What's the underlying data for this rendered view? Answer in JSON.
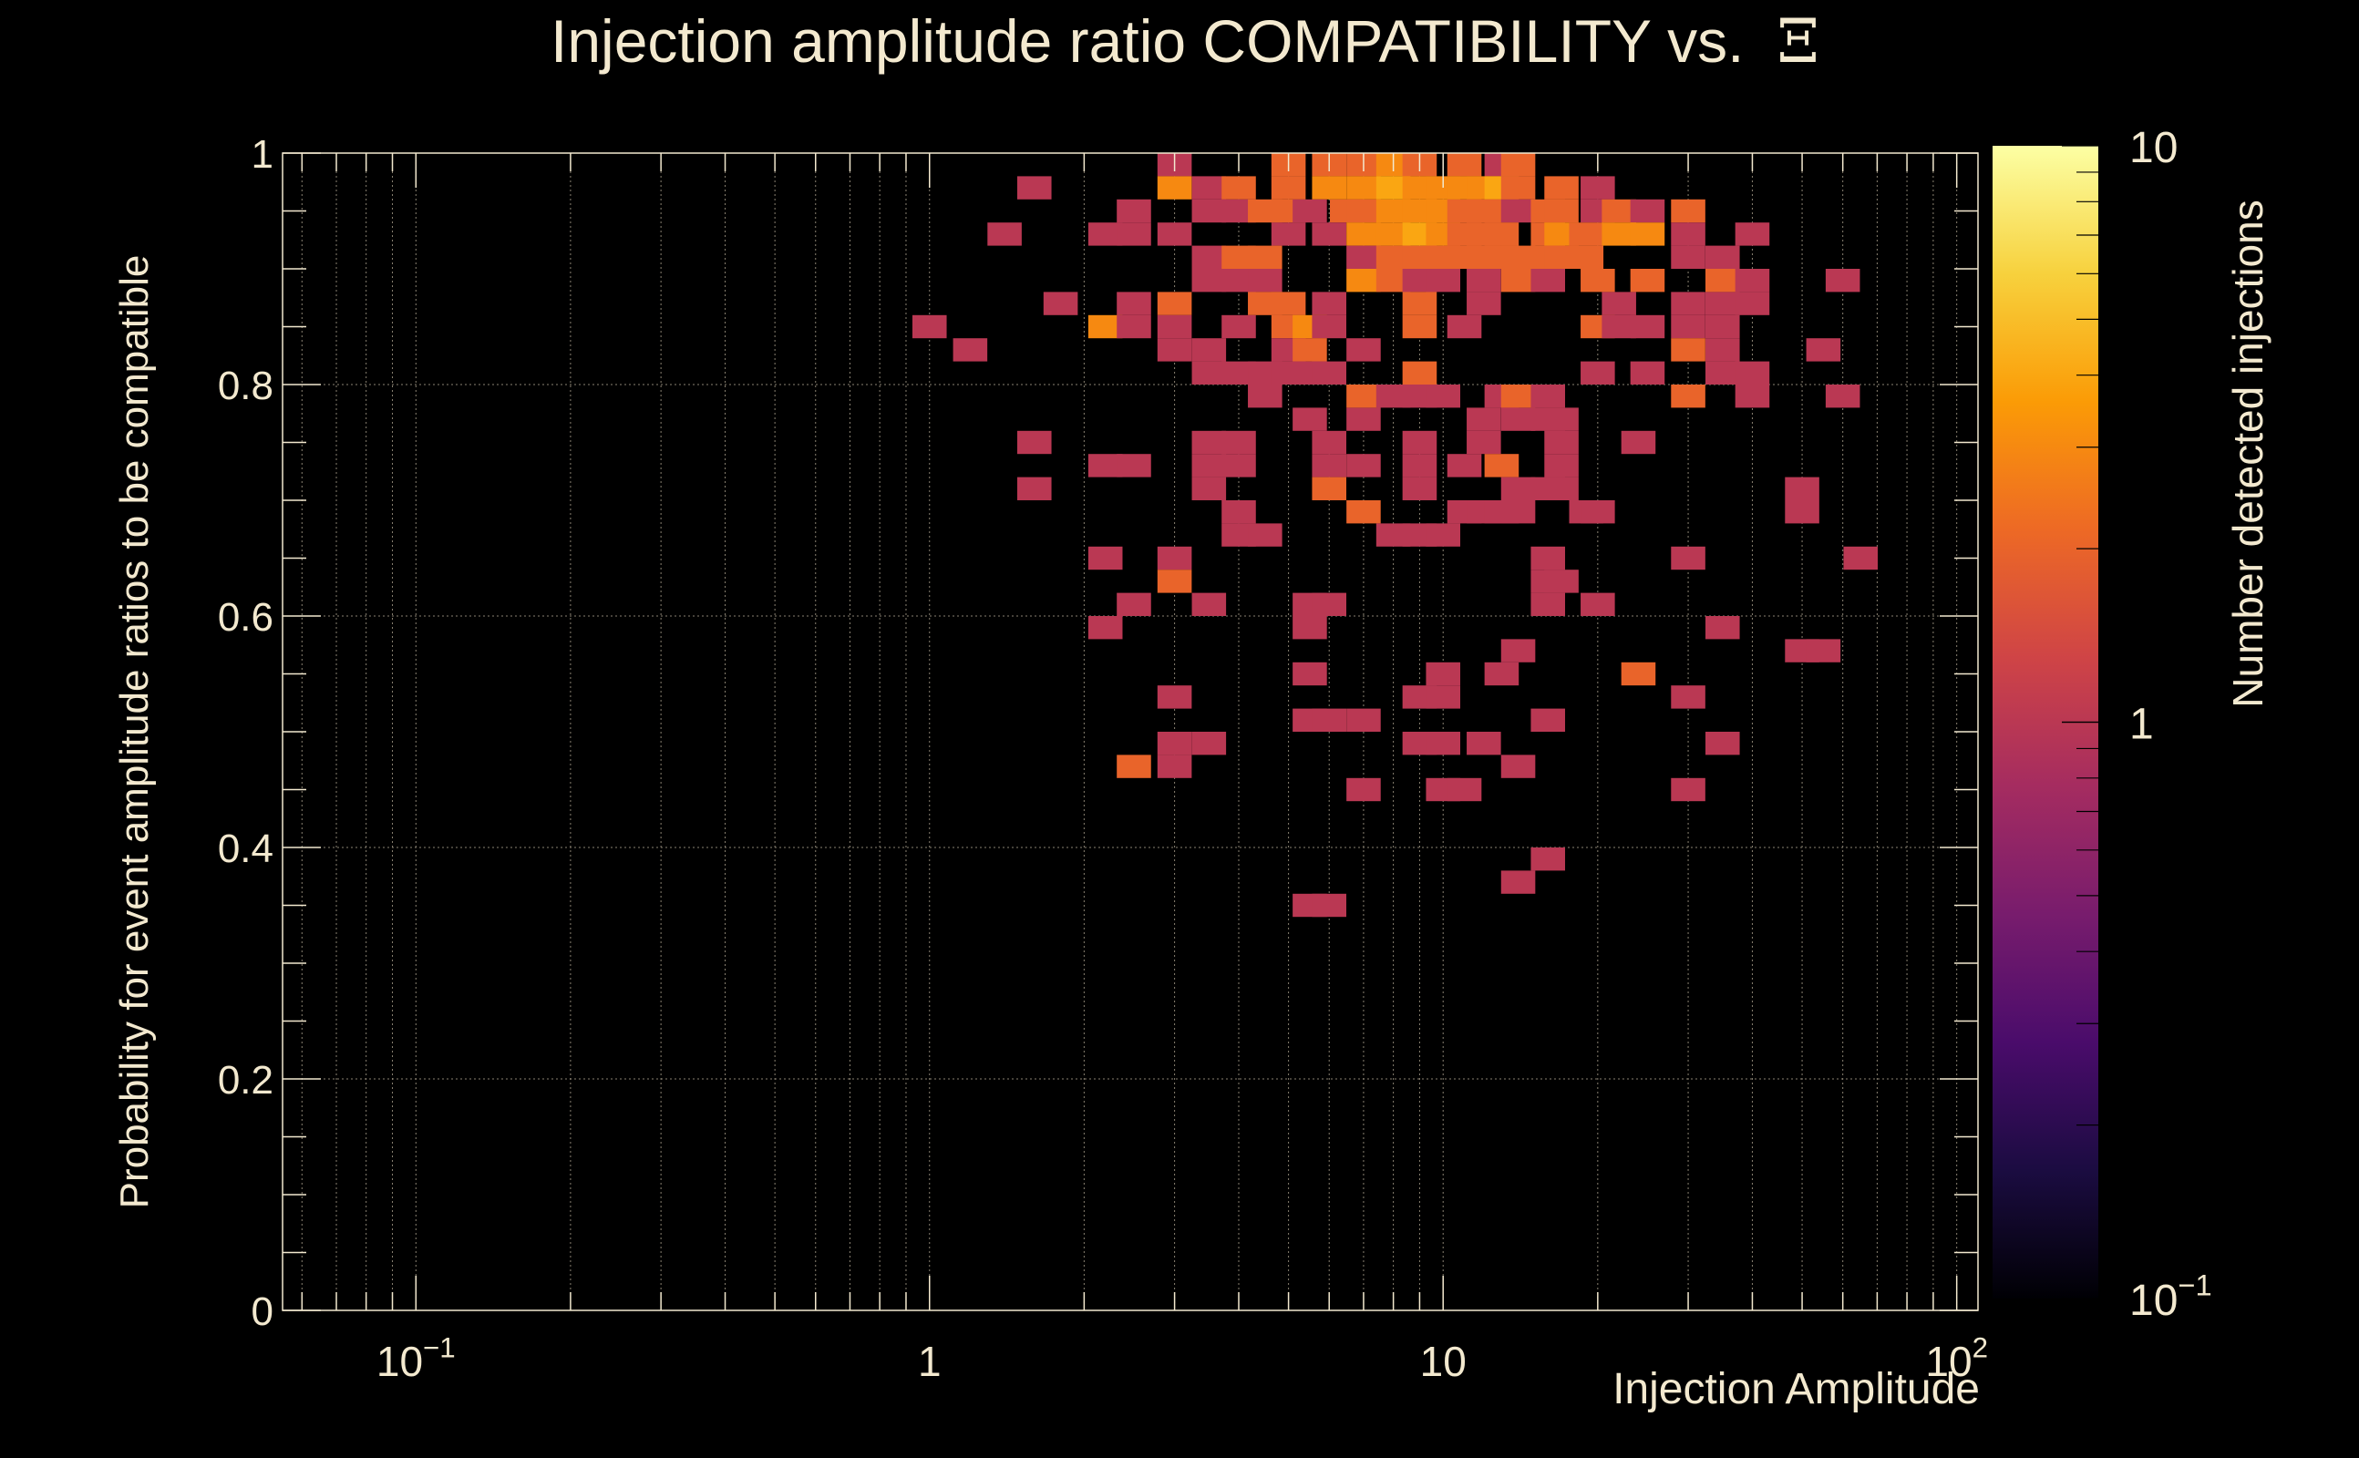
{
  "chart_data": {
    "type": "heatmap",
    "title": "Injection amplitude ratio COMPATIBILITY vs.",
    "title_symbol": "Ξ",
    "xlabel": "Injection Amplitude",
    "ylabel": "Probability for event amplitude ratios to be compatible",
    "zlabel": "Number detected injections",
    "xscale": "log",
    "xlim": [
      0.055,
      110
    ],
    "ylim": [
      0,
      1
    ],
    "zscale": "log",
    "zlim": [
      0.1,
      10
    ],
    "grid": true,
    "x_ticks": [
      {
        "value": 0.1,
        "base": "10",
        "exp": "−1"
      },
      {
        "value": 1,
        "base": "1",
        "exp": ""
      },
      {
        "value": 10,
        "base": "10",
        "exp": ""
      },
      {
        "value": 100,
        "base": "10",
        "exp": "2"
      }
    ],
    "y_ticks": [
      {
        "value": 0,
        "label": "0"
      },
      {
        "value": 0.2,
        "label": "0.2"
      },
      {
        "value": 0.4,
        "label": "0.4"
      },
      {
        "value": 0.6,
        "label": "0.6"
      },
      {
        "value": 0.8,
        "label": "0.8"
      },
      {
        "value": 1,
        "label": "1"
      }
    ],
    "z_ticks": [
      {
        "value": 0.1,
        "base": "10",
        "exp": "−1"
      },
      {
        "value": 1,
        "base": "1",
        "exp": ""
      },
      {
        "value": 10,
        "base": "10",
        "exp": ""
      }
    ],
    "colormap": [
      "#000004",
      "#1b0c41",
      "#4a0c6b",
      "#781c6d",
      "#a52c60",
      "#cf4446",
      "#ed6925",
      "#fb9b06",
      "#f7d13d",
      "#fcffa4"
    ],
    "bins_x_per_decade": 15,
    "bins_y": 50,
    "cells": [
      [
        3,
        0.99,
        1
      ],
      [
        5,
        0.99,
        2
      ],
      [
        6,
        0.99,
        2
      ],
      [
        7,
        0.99,
        2
      ],
      [
        8,
        0.99,
        3
      ],
      [
        9,
        0.99,
        2
      ],
      [
        11,
        0.99,
        2
      ],
      [
        13,
        0.99,
        1
      ],
      [
        14,
        0.99,
        2
      ],
      [
        1.6,
        0.97,
        1
      ],
      [
        3,
        0.97,
        3
      ],
      [
        3.5,
        0.97,
        1
      ],
      [
        4,
        0.97,
        2
      ],
      [
        5,
        0.97,
        2
      ],
      [
        6,
        0.97,
        3
      ],
      [
        7,
        0.97,
        3
      ],
      [
        8,
        0.97,
        4
      ],
      [
        9,
        0.97,
        3
      ],
      [
        10,
        0.97,
        3
      ],
      [
        11,
        0.97,
        3
      ],
      [
        12,
        0.97,
        3
      ],
      [
        13,
        0.97,
        4
      ],
      [
        14,
        0.97,
        2
      ],
      [
        17,
        0.97,
        2
      ],
      [
        20,
        0.97,
        1
      ],
      [
        2.5,
        0.95,
        1
      ],
      [
        3.5,
        0.95,
        1
      ],
      [
        4,
        0.95,
        1
      ],
      [
        4.5,
        0.95,
        2
      ],
      [
        5,
        0.95,
        2
      ],
      [
        5.5,
        0.95,
        1
      ],
      [
        6.5,
        0.95,
        2
      ],
      [
        7,
        0.95,
        2
      ],
      [
        8,
        0.95,
        3
      ],
      [
        9,
        0.95,
        3
      ],
      [
        10,
        0.95,
        3
      ],
      [
        11,
        0.95,
        2
      ],
      [
        12,
        0.95,
        2
      ],
      [
        13,
        0.95,
        2
      ],
      [
        14,
        0.95,
        1
      ],
      [
        16,
        0.95,
        2
      ],
      [
        17,
        0.95,
        2
      ],
      [
        20,
        0.95,
        1
      ],
      [
        22,
        0.95,
        2
      ],
      [
        25,
        0.95,
        1
      ],
      [
        30,
        0.95,
        2
      ],
      [
        1.4,
        0.93,
        1
      ],
      [
        2.2,
        0.93,
        1
      ],
      [
        2.5,
        0.93,
        1
      ],
      [
        3,
        0.93,
        1
      ],
      [
        5,
        0.93,
        1
      ],
      [
        6,
        0.93,
        1
      ],
      [
        7,
        0.93,
        3
      ],
      [
        8,
        0.93,
        3
      ],
      [
        9,
        0.93,
        4
      ],
      [
        10,
        0.93,
        3
      ],
      [
        11,
        0.93,
        2
      ],
      [
        12,
        0.93,
        2
      ],
      [
        13,
        0.93,
        2
      ],
      [
        16,
        0.93,
        2
      ],
      [
        17,
        0.93,
        3
      ],
      [
        19,
        0.93,
        2
      ],
      [
        22,
        0.93,
        3
      ],
      [
        25,
        0.93,
        3
      ],
      [
        30,
        0.93,
        1
      ],
      [
        40,
        0.93,
        1
      ],
      [
        3.5,
        0.91,
        1
      ],
      [
        4,
        0.91,
        2
      ],
      [
        4.5,
        0.91,
        2
      ],
      [
        7,
        0.91,
        1
      ],
      [
        8,
        0.91,
        2
      ],
      [
        9,
        0.91,
        2
      ],
      [
        10,
        0.91,
        2
      ],
      [
        11,
        0.91,
        2
      ],
      [
        12,
        0.91,
        2
      ],
      [
        13,
        0.91,
        2
      ],
      [
        14,
        0.91,
        2
      ],
      [
        16,
        0.91,
        2
      ],
      [
        17,
        0.91,
        2
      ],
      [
        19,
        0.91,
        2
      ],
      [
        30,
        0.91,
        1
      ],
      [
        35,
        0.91,
        1
      ],
      [
        3.5,
        0.89,
        1
      ],
      [
        4,
        0.89,
        1
      ],
      [
        4.5,
        0.89,
        1
      ],
      [
        7,
        0.89,
        3
      ],
      [
        8,
        0.89,
        2
      ],
      [
        9,
        0.89,
        1
      ],
      [
        10,
        0.89,
        1
      ],
      [
        12,
        0.89,
        1
      ],
      [
        14,
        0.89,
        2
      ],
      [
        16,
        0.89,
        1
      ],
      [
        20,
        0.89,
        2
      ],
      [
        25,
        0.89,
        2
      ],
      [
        35,
        0.89,
        2
      ],
      [
        40,
        0.89,
        1
      ],
      [
        60,
        0.89,
        1
      ],
      [
        1.8,
        0.87,
        1
      ],
      [
        2.5,
        0.87,
        1
      ],
      [
        3,
        0.87,
        2
      ],
      [
        4.5,
        0.87,
        2
      ],
      [
        5,
        0.87,
        2
      ],
      [
        6,
        0.87,
        1
      ],
      [
        9,
        0.87,
        2
      ],
      [
        12,
        0.87,
        1
      ],
      [
        22,
        0.87,
        1
      ],
      [
        30,
        0.87,
        1
      ],
      [
        35,
        0.87,
        1
      ],
      [
        40,
        0.87,
        1
      ],
      [
        1,
        0.85,
        1
      ],
      [
        2.2,
        0.85,
        3
      ],
      [
        2.5,
        0.85,
        1
      ],
      [
        3,
        0.85,
        1
      ],
      [
        4,
        0.85,
        1
      ],
      [
        5,
        0.85,
        2
      ],
      [
        5.5,
        0.85,
        3
      ],
      [
        6,
        0.85,
        1
      ],
      [
        9,
        0.85,
        2
      ],
      [
        11,
        0.85,
        1
      ],
      [
        20,
        0.85,
        2
      ],
      [
        22,
        0.85,
        1
      ],
      [
        25,
        0.85,
        1
      ],
      [
        30,
        0.85,
        1
      ],
      [
        35,
        0.85,
        1
      ],
      [
        1.2,
        0.83,
        1
      ],
      [
        3,
        0.83,
        1
      ],
      [
        3.5,
        0.83,
        1
      ],
      [
        5,
        0.83,
        1
      ],
      [
        5.5,
        0.83,
        2
      ],
      [
        7,
        0.83,
        1
      ],
      [
        30,
        0.83,
        2
      ],
      [
        35,
        0.83,
        1
      ],
      [
        55,
        0.83,
        1
      ],
      [
        3.5,
        0.81,
        1
      ],
      [
        4,
        0.81,
        1
      ],
      [
        4.5,
        0.81,
        1
      ],
      [
        5,
        0.81,
        1
      ],
      [
        5.5,
        0.81,
        1
      ],
      [
        6,
        0.81,
        1
      ],
      [
        9,
        0.81,
        2
      ],
      [
        20,
        0.81,
        1
      ],
      [
        25,
        0.81,
        1
      ],
      [
        35,
        0.81,
        1
      ],
      [
        40,
        0.81,
        1
      ],
      [
        4.5,
        0.79,
        1
      ],
      [
        7,
        0.79,
        2
      ],
      [
        8,
        0.79,
        1
      ],
      [
        9,
        0.79,
        1
      ],
      [
        10,
        0.79,
        1
      ],
      [
        13,
        0.79,
        1
      ],
      [
        14,
        0.79,
        2
      ],
      [
        16,
        0.79,
        1
      ],
      [
        30,
        0.79,
        2
      ],
      [
        40,
        0.79,
        1
      ],
      [
        60,
        0.79,
        1
      ],
      [
        5.5,
        0.77,
        1
      ],
      [
        7,
        0.77,
        1
      ],
      [
        12,
        0.77,
        1
      ],
      [
        14,
        0.77,
        1
      ],
      [
        16,
        0.77,
        1
      ],
      [
        17,
        0.77,
        1
      ],
      [
        1.6,
        0.75,
        1
      ],
      [
        3.5,
        0.75,
        1
      ],
      [
        4,
        0.75,
        1
      ],
      [
        6,
        0.75,
        1
      ],
      [
        9,
        0.75,
        1
      ],
      [
        12,
        0.75,
        1
      ],
      [
        17,
        0.75,
        1
      ],
      [
        24,
        0.75,
        1
      ],
      [
        2.2,
        0.73,
        1
      ],
      [
        2.5,
        0.73,
        1
      ],
      [
        3.5,
        0.73,
        1
      ],
      [
        4,
        0.73,
        1
      ],
      [
        6,
        0.73,
        1
      ],
      [
        7,
        0.73,
        1
      ],
      [
        9,
        0.73,
        1
      ],
      [
        11,
        0.73,
        1
      ],
      [
        13,
        0.73,
        2
      ],
      [
        17,
        0.73,
        1
      ],
      [
        1.6,
        0.71,
        1
      ],
      [
        3.5,
        0.71,
        1
      ],
      [
        6,
        0.71,
        2
      ],
      [
        9,
        0.71,
        1
      ],
      [
        14,
        0.71,
        1
      ],
      [
        16,
        0.71,
        1
      ],
      [
        17,
        0.71,
        1
      ],
      [
        50,
        0.71,
        1
      ],
      [
        4,
        0.69,
        1
      ],
      [
        7,
        0.69,
        2
      ],
      [
        11,
        0.69,
        1
      ],
      [
        12,
        0.69,
        1
      ],
      [
        13,
        0.69,
        1
      ],
      [
        14,
        0.69,
        1
      ],
      [
        19,
        0.69,
        1
      ],
      [
        20,
        0.69,
        1
      ],
      [
        50,
        0.69,
        1
      ],
      [
        4,
        0.67,
        1
      ],
      [
        4.5,
        0.67,
        1
      ],
      [
        8,
        0.67,
        1
      ],
      [
        9,
        0.67,
        1
      ],
      [
        10,
        0.67,
        1
      ],
      [
        2.2,
        0.65,
        1
      ],
      [
        3,
        0.65,
        1
      ],
      [
        16,
        0.65,
        1
      ],
      [
        30,
        0.65,
        1
      ],
      [
        65,
        0.65,
        1
      ],
      [
        3,
        0.63,
        2
      ],
      [
        16,
        0.63,
        1
      ],
      [
        17,
        0.63,
        1
      ],
      [
        2.5,
        0.61,
        1
      ],
      [
        3.5,
        0.61,
        1
      ],
      [
        5.5,
        0.61,
        1
      ],
      [
        6,
        0.61,
        1
      ],
      [
        16,
        0.61,
        1
      ],
      [
        20,
        0.61,
        1
      ],
      [
        2.2,
        0.59,
        1
      ],
      [
        5.5,
        0.59,
        1
      ],
      [
        35,
        0.59,
        1
      ],
      [
        14,
        0.57,
        1
      ],
      [
        50,
        0.57,
        1
      ],
      [
        55,
        0.57,
        1
      ],
      [
        5.5,
        0.55,
        1
      ],
      [
        10,
        0.55,
        1
      ],
      [
        13,
        0.55,
        1
      ],
      [
        24,
        0.55,
        2
      ],
      [
        3,
        0.53,
        1
      ],
      [
        9,
        0.53,
        1
      ],
      [
        10,
        0.53,
        1
      ],
      [
        30,
        0.53,
        1
      ],
      [
        5.5,
        0.51,
        1
      ],
      [
        6,
        0.51,
        1
      ],
      [
        7,
        0.51,
        1
      ],
      [
        16,
        0.51,
        1
      ],
      [
        3,
        0.49,
        1
      ],
      [
        3.5,
        0.49,
        1
      ],
      [
        9,
        0.49,
        1
      ],
      [
        10,
        0.49,
        1
      ],
      [
        12,
        0.49,
        1
      ],
      [
        35,
        0.49,
        1
      ],
      [
        2.5,
        0.47,
        2
      ],
      [
        3,
        0.47,
        1
      ],
      [
        14,
        0.47,
        1
      ],
      [
        7,
        0.45,
        1
      ],
      [
        10,
        0.45,
        1
      ],
      [
        11,
        0.45,
        1
      ],
      [
        30,
        0.45,
        1
      ],
      [
        16,
        0.39,
        1
      ],
      [
        14,
        0.37,
        1
      ],
      [
        5.5,
        0.35,
        1
      ],
      [
        6,
        0.35,
        1
      ]
    ]
  }
}
